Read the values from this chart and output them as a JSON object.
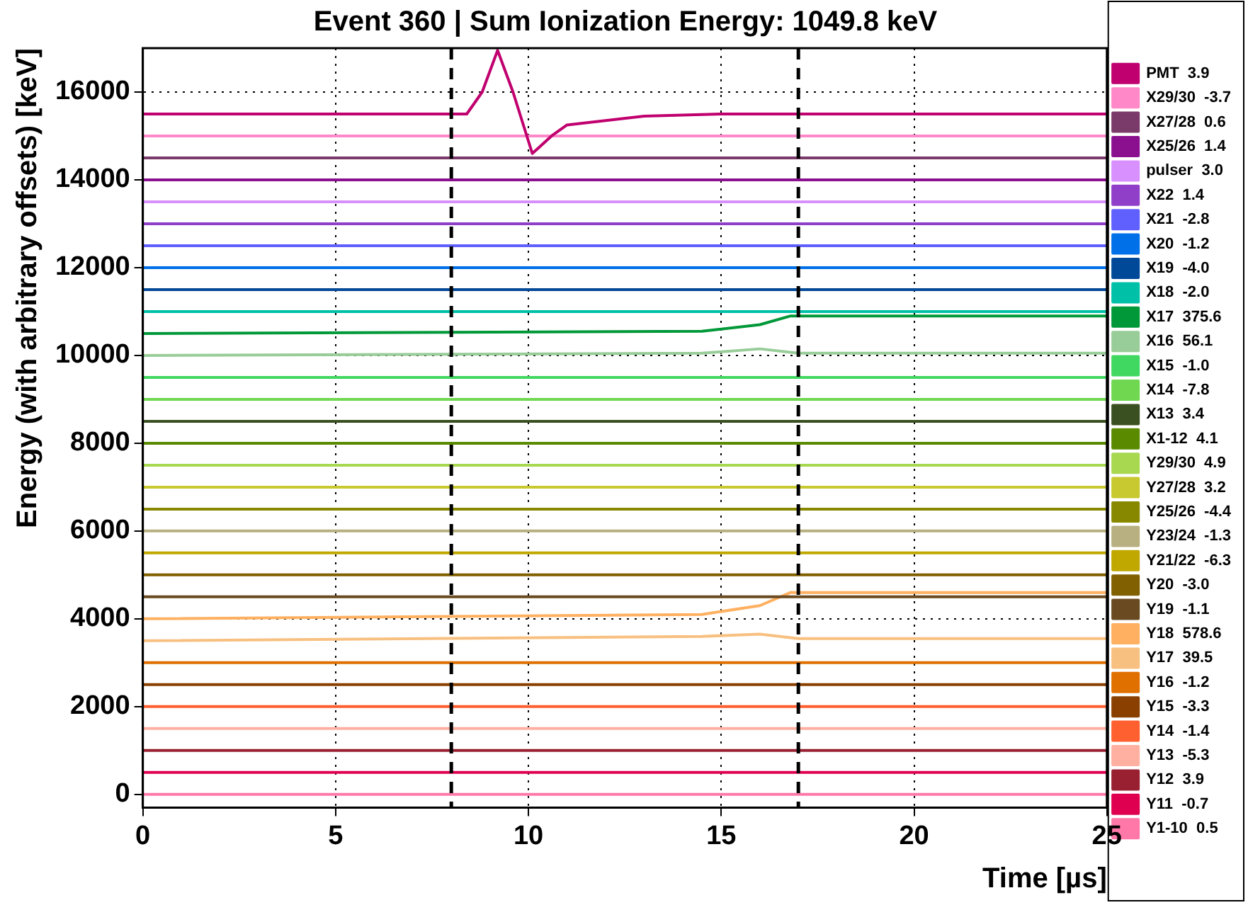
{
  "chart_data": {
    "type": "line",
    "title": "Event 360 | Sum Ionization Energy: 1049.8 keV",
    "xlabel": "Time [µs]",
    "ylabel": "Energy (with arbitrary offsets) [keV]",
    "xlim": [
      0,
      25
    ],
    "xticks": [
      0,
      5,
      10,
      15,
      20,
      25
    ],
    "ylim": [
      -300,
      17000
    ],
    "yticks": [
      0,
      2000,
      4000,
      6000,
      8000,
      10000,
      12000,
      14000,
      16000
    ],
    "grid": true,
    "legend": "right",
    "marker": "none",
    "line_style": "solid",
    "ref_lines": [
      {
        "axis": "x",
        "value": 8,
        "color": "#000000",
        "line_style": "dashed"
      },
      {
        "axis": "x",
        "value": 17,
        "color": "#000000",
        "line_style": "dashed"
      }
    ],
    "series": [
      {
        "name": "PMT  3.9",
        "color": "#c0006e",
        "x": [
          0,
          8.4,
          8.8,
          9.2,
          9.6,
          10.1,
          10.6,
          11,
          12,
          13,
          15,
          16,
          25
        ],
        "values": [
          15500,
          15500,
          16000,
          16950,
          16000,
          14600,
          15000,
          15250,
          15350,
          15450,
          15500,
          15500,
          15500
        ]
      },
      {
        "name": "X29/30  -3.7",
        "color": "#ff88c8",
        "x": [
          0,
          25
        ],
        "values": [
          15000,
          15000
        ]
      },
      {
        "name": "X27/28  0.6",
        "color": "#7a3a6a",
        "x": [
          0,
          25
        ],
        "values": [
          14500,
          14500
        ]
      },
      {
        "name": "X25/26  1.4",
        "color": "#8a1090",
        "x": [
          0,
          25
        ],
        "values": [
          14000,
          14000
        ]
      },
      {
        "name": "pulser  3.0",
        "color": "#d890ff",
        "x": [
          0,
          25
        ],
        "values": [
          13500,
          13500
        ]
      },
      {
        "name": "X22  1.4",
        "color": "#9040c8",
        "x": [
          0,
          25
        ],
        "values": [
          13000,
          13000
        ]
      },
      {
        "name": "X21  -2.8",
        "color": "#6060ff",
        "x": [
          0,
          25
        ],
        "values": [
          12500,
          12500
        ]
      },
      {
        "name": "X20  -1.2",
        "color": "#0070e8",
        "x": [
          0,
          25
        ],
        "values": [
          12000,
          12000
        ]
      },
      {
        "name": "X19  -4.0",
        "color": "#004898",
        "x": [
          0,
          25
        ],
        "values": [
          11500,
          11500
        ]
      },
      {
        "name": "X18  -2.0",
        "color": "#00c0a8",
        "x": [
          0,
          25
        ],
        "values": [
          11000,
          11000
        ]
      },
      {
        "name": "X17  375.6",
        "color": "#009838",
        "x": [
          0,
          14.5,
          16,
          16.8,
          25
        ],
        "values": [
          10500,
          10550,
          10700,
          10900,
          10900
        ]
      },
      {
        "name": "X16  56.1",
        "color": "#98cc98",
        "x": [
          0,
          14.5,
          16,
          17,
          25
        ],
        "values": [
          10000,
          10050,
          10150,
          10050,
          10050
        ]
      },
      {
        "name": "X15  -1.0",
        "color": "#40d860",
        "x": [
          0,
          25
        ],
        "values": [
          9500,
          9500
        ]
      },
      {
        "name": "X14  -7.8",
        "color": "#70d850",
        "x": [
          0,
          25
        ],
        "values": [
          9000,
          9000
        ]
      },
      {
        "name": "X13  3.4",
        "color": "#3a5020",
        "x": [
          0,
          25
        ],
        "values": [
          8500,
          8500
        ]
      },
      {
        "name": "X1-12  4.1",
        "color": "#5a8a00",
        "x": [
          0,
          25
        ],
        "values": [
          8000,
          8000
        ]
      },
      {
        "name": "Y29/30  4.9",
        "color": "#a8d850",
        "x": [
          0,
          25
        ],
        "values": [
          7500,
          7500
        ]
      },
      {
        "name": "Y27/28  3.2",
        "color": "#c8c830",
        "x": [
          0,
          25
        ],
        "values": [
          7000,
          7000
        ]
      },
      {
        "name": "Y25/26  -4.4",
        "color": "#888800",
        "x": [
          0,
          25
        ],
        "values": [
          6500,
          6500
        ]
      },
      {
        "name": "Y23/24  -1.3",
        "color": "#b8b080",
        "x": [
          0,
          25
        ],
        "values": [
          6000,
          6000
        ]
      },
      {
        "name": "Y21/22  -6.3",
        "color": "#c0a800",
        "x": [
          0,
          25
        ],
        "values": [
          5500,
          5500
        ]
      },
      {
        "name": "Y20  -3.0",
        "color": "#806000",
        "x": [
          0,
          25
        ],
        "values": [
          5000,
          5000
        ]
      },
      {
        "name": "Y19  -1.1",
        "color": "#6a4a20",
        "x": [
          0,
          25
        ],
        "values": [
          4500,
          4500
        ]
      },
      {
        "name": "Y18  578.6",
        "color": "#ffb060",
        "x": [
          0,
          14.5,
          16,
          16.8,
          25
        ],
        "values": [
          4000,
          4100,
          4300,
          4600,
          4600
        ]
      },
      {
        "name": "Y17  39.5",
        "color": "#f8c080",
        "x": [
          0,
          14.5,
          16,
          17,
          25
        ],
        "values": [
          3500,
          3600,
          3650,
          3550,
          3550
        ]
      },
      {
        "name": "Y16  -1.2",
        "color": "#e07000",
        "x": [
          0,
          25
        ],
        "values": [
          3000,
          3000
        ]
      },
      {
        "name": "Y15  -3.3",
        "color": "#8a4000",
        "x": [
          0,
          25
        ],
        "values": [
          2500,
          2500
        ]
      },
      {
        "name": "Y14  -1.4",
        "color": "#ff6030",
        "x": [
          0,
          25
        ],
        "values": [
          2000,
          2000
        ]
      },
      {
        "name": "Y13  -5.3",
        "color": "#ffb0a0",
        "x": [
          0,
          25
        ],
        "values": [
          1500,
          1500
        ]
      },
      {
        "name": "Y12  3.9",
        "color": "#982030",
        "x": [
          0,
          25
        ],
        "values": [
          1000,
          1000
        ]
      },
      {
        "name": "Y11  -0.7",
        "color": "#e00050",
        "x": [
          0,
          25
        ],
        "values": [
          500,
          500
        ]
      },
      {
        "name": "Y1-10  0.5",
        "color": "#ff78a8",
        "x": [
          0,
          25
        ],
        "values": [
          0,
          0
        ]
      }
    ]
  }
}
